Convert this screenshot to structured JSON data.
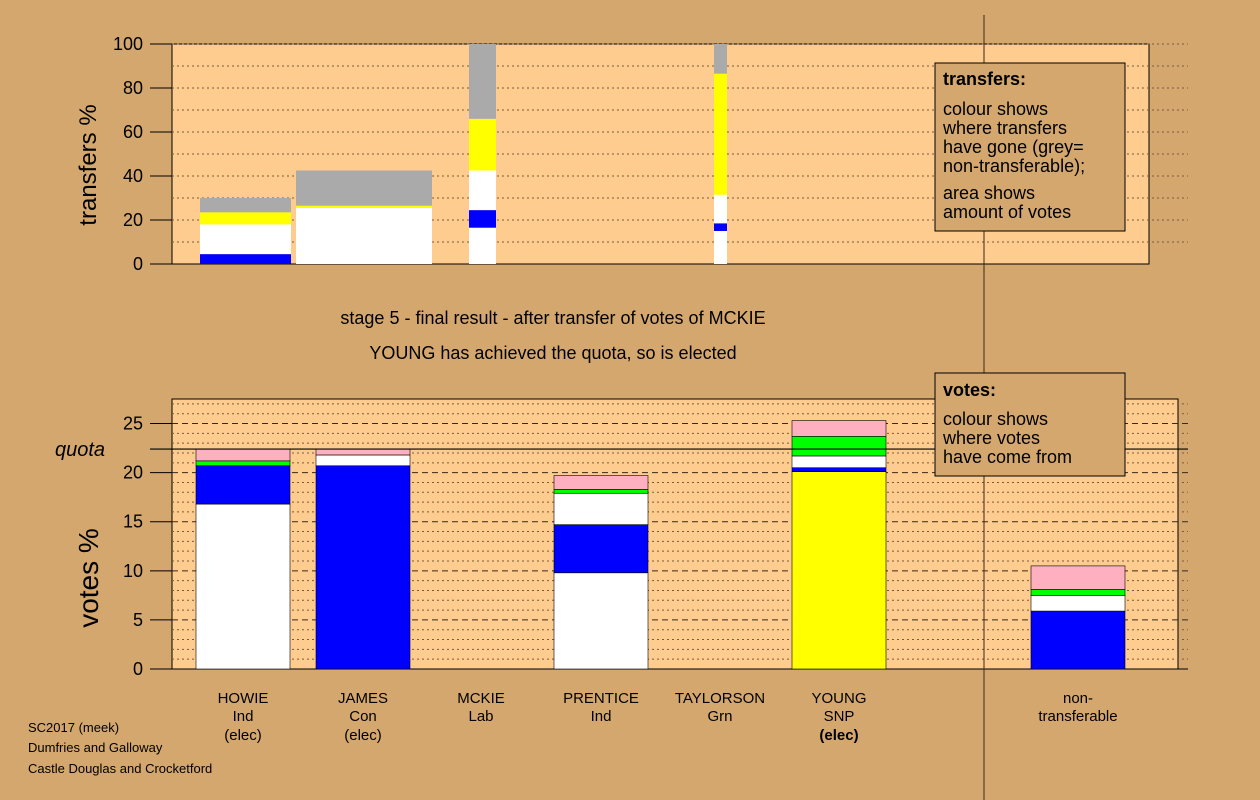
{
  "chart_data": [
    {
      "type": "bar",
      "stacked": true,
      "ylabel": "transfers %",
      "ylim": [
        0,
        100
      ],
      "yticks": [
        "0",
        "20",
        "40",
        "60",
        "80",
        "100"
      ],
      "categories": [
        "HOWIE",
        "JAMES",
        "MCKIE",
        "PRENTICE",
        "TAYLORSON",
        "YOUNG",
        "non-transferable"
      ],
      "bars": [
        {
          "candidate": "HOWIE",
          "segments": [
            {
              "color": "#0000ff",
              "value": 4.5
            },
            {
              "color": "#ffffff",
              "value": 13.5
            },
            {
              "color": "#ffff00",
              "value": 5.5
            },
            {
              "color": "#aaaaaa",
              "value": 6.5
            }
          ]
        },
        {
          "candidate": "JAMES",
          "segments": [
            {
              "color": "#ffffff",
              "value": 25.5
            },
            {
              "color": "#ffff00",
              "value": 1.0
            },
            {
              "color": "#aaaaaa",
              "value": 16.0
            }
          ]
        },
        {
          "candidate": "MCKIE",
          "segments": [
            {
              "color": "#ffffff",
              "value": 16.5
            },
            {
              "color": "#0000ff",
              "value": 8.0
            },
            {
              "color": "#ffffff",
              "value": 18.0
            },
            {
              "color": "#ffff00",
              "value": 23.5
            },
            {
              "color": "#aaaaaa",
              "value": 34.0
            }
          ]
        },
        {
          "candidate": "YOUNG",
          "segments": [
            {
              "color": "#ffffff",
              "value": 15.0
            },
            {
              "color": "#0000ff",
              "value": 3.5
            },
            {
              "color": "#ffffff",
              "value": 13.0
            },
            {
              "color": "#ffff00",
              "value": 55.0
            },
            {
              "color": "#aaaaaa",
              "value": 13.5
            }
          ]
        }
      ]
    },
    {
      "type": "bar",
      "stacked": true,
      "ylabel": "votes %",
      "ylim": [
        0,
        27.5
      ],
      "yticks": [
        "0",
        "5",
        "10",
        "15",
        "20",
        "25"
      ],
      "quota": 22.4,
      "quota_label": "quota",
      "categories": [
        "HOWIE",
        "JAMES",
        "MCKIE",
        "PRENTICE",
        "TAYLORSON",
        "YOUNG",
        "non-transferable"
      ],
      "bars": [
        {
          "candidate": "HOWIE",
          "segments": [
            {
              "color": "#ffffff",
              "value": 16.8
            },
            {
              "color": "#0000ff",
              "value": 3.9
            },
            {
              "color": "#00ff00",
              "value": 0.5
            },
            {
              "color": "#ffb0c0",
              "value": 1.2
            }
          ]
        },
        {
          "candidate": "JAMES",
          "segments": [
            {
              "color": "#0000ff",
              "value": 20.7
            },
            {
              "color": "#ffffff",
              "value": 1.1
            },
            {
              "color": "#ffb0c0",
              "value": 0.6
            }
          ]
        },
        {
          "candidate": "MCKIE",
          "segments": []
        },
        {
          "candidate": "PRENTICE",
          "segments": [
            {
              "color": "#ffffff",
              "value": 9.8
            },
            {
              "color": "#0000ff",
              "value": 4.9
            },
            {
              "color": "#ffffff",
              "value": 3.2
            },
            {
              "color": "#00ff00",
              "value": 0.4
            },
            {
              "color": "#ffb0c0",
              "value": 1.4
            }
          ]
        },
        {
          "candidate": "TAYLORSON",
          "segments": []
        },
        {
          "candidate": "YOUNG",
          "segments": [
            {
              "color": "#ffff00",
              "value": 20.1
            },
            {
              "color": "#0000ff",
              "value": 0.4
            },
            {
              "color": "#ffffff",
              "value": 1.2
            },
            {
              "color": "#00ff00",
              "value": 2.0
            },
            {
              "color": "#ffb0c0",
              "value": 1.6
            }
          ]
        },
        {
          "candidate": "non-transferable",
          "segments": [
            {
              "color": "#0000ff",
              "value": 5.9
            },
            {
              "color": "#ffffff",
              "value": 1.6
            },
            {
              "color": "#00ff00",
              "value": 0.6
            },
            {
              "color": "#ffb0c0",
              "value": 2.4
            }
          ]
        }
      ]
    }
  ],
  "stage_text": "stage 5 - final result - after transfer of votes of MCKIE",
  "result_text": "YOUNG has achieved the quota, so is elected",
  "candidates": [
    {
      "name": "HOWIE",
      "party": "Ind",
      "status": "(elec)"
    },
    {
      "name": "JAMES",
      "party": "Con",
      "status": "(elec)"
    },
    {
      "name": "MCKIE",
      "party": "Lab",
      "status": ""
    },
    {
      "name": "PRENTICE",
      "party": "Ind",
      "status": ""
    },
    {
      "name": "TAYLORSON",
      "party": "Grn",
      "status": ""
    },
    {
      "name": "YOUNG",
      "party": "SNP",
      "status": "(elec)"
    },
    {
      "name": "non-",
      "party": "transferable",
      "status": ""
    }
  ],
  "transfers_box": {
    "title": "transfers:",
    "lines1": [
      "colour shows",
      "where transfers",
      "have gone (grey=",
      "non-transferable);"
    ],
    "lines2": [
      "area shows",
      "amount of votes"
    ]
  },
  "votes_box": {
    "title": "votes:",
    "lines": [
      "colour shows",
      "where votes",
      "have come from"
    ]
  },
  "footer": [
    "SC2017 (meek)",
    "Dumfries and Galloway",
    "Castle Douglas and Crocketford"
  ],
  "colors": {
    "background": "#d4a76f",
    "plot_bg": "#ffcc8f",
    "grey": "#aaaaaa"
  }
}
